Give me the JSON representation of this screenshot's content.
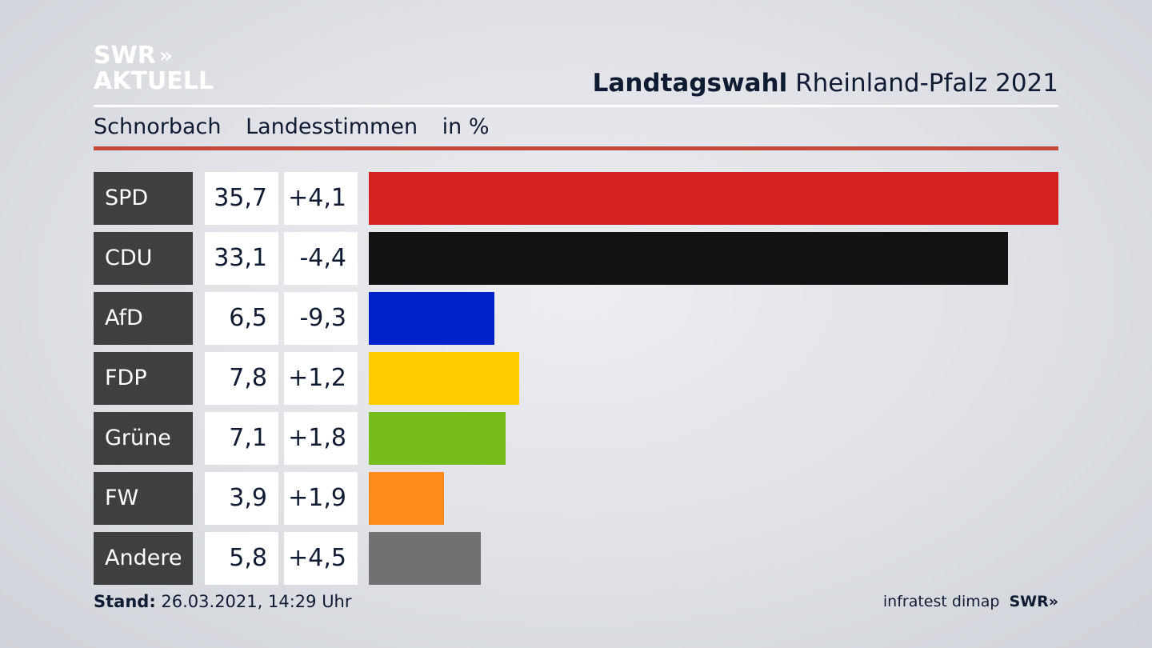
{
  "brand": {
    "logo_line1": "SWR",
    "logo_arrows": "»",
    "logo_line2": "AKTUELL"
  },
  "header": {
    "title_strong": "Landtagswahl",
    "title_rest": "Rheinland-Pfalz 2021"
  },
  "subheader": {
    "place": "Schnorbach",
    "category": "Landesstimmen",
    "unit": "in %"
  },
  "colors": {
    "SPD": "#d62021",
    "CDU": "#121212",
    "AfD": "#0021c8",
    "FDP": "#ffcc00",
    "Grüne": "#78bb1d",
    "FW": "#ff8c19",
    "Andere": "#707173"
  },
  "chart_data": {
    "type": "bar",
    "orientation": "horizontal",
    "title": "Landtagswahl Rheinland-Pfalz 2021",
    "subtitle": "Schnorbach Landesstimmen in %",
    "categories": [
      "SPD",
      "CDU",
      "AfD",
      "FDP",
      "Grüne",
      "FW",
      "Andere"
    ],
    "values_label": [
      "35,7",
      "33,1",
      "6,5",
      "7,8",
      "7,1",
      "3,9",
      "5,8"
    ],
    "values": [
      35.7,
      33.1,
      6.5,
      7.8,
      7.1,
      3.9,
      5.8
    ],
    "change_label": [
      "+4,1",
      "-4,4",
      "-9,3",
      "+1,2",
      "+1,8",
      "+1,9",
      "+4,5"
    ],
    "change": [
      4.1,
      -4.4,
      -9.3,
      1.2,
      1.8,
      1.9,
      4.5
    ],
    "xlim": [
      0,
      35.7
    ]
  },
  "footer": {
    "stand_label": "Stand:",
    "stand_value": "26.03.2021, 14:29 Uhr",
    "source": "infratest dimap",
    "source_brand": "SWR",
    "source_arrows": "»"
  }
}
